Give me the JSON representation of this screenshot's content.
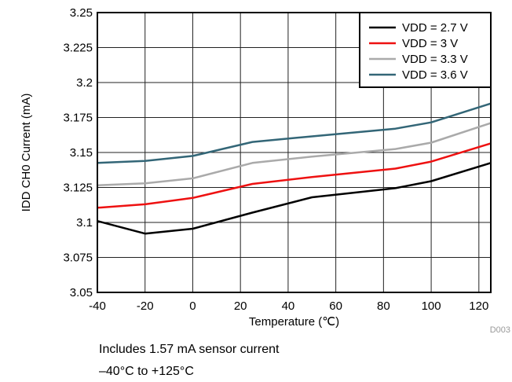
{
  "chart_data": {
    "type": "line",
    "xlabel": "Temperature (℃)",
    "ylabel": "IDD CH0 Current (mA)",
    "xlim": [
      -40,
      125
    ],
    "ylim": [
      3.05,
      3.25
    ],
    "x_ticks": [
      -40,
      -20,
      0,
      20,
      40,
      60,
      80,
      100,
      120
    ],
    "x_tick_labels": [
      "-40",
      "-20",
      "0",
      "20",
      "40",
      "60",
      "80",
      "100",
      "120"
    ],
    "y_ticks": [
      3.05,
      3.075,
      3.1,
      3.125,
      3.15,
      3.175,
      3.2,
      3.225,
      3.25
    ],
    "y_tick_labels": [
      "3.05",
      "3.075",
      "3.1",
      "3.125",
      "3.15",
      "3.175",
      "3.2",
      "3.225",
      "3.25"
    ],
    "grid": true,
    "legend_position": "top-right",
    "x": [
      -40,
      -20,
      0,
      25,
      50,
      85,
      100,
      125
    ],
    "series": [
      {
        "name": "VDD = 2.7 V",
        "color": "#000000",
        "values": [
          3.101,
          3.092,
          3.0955,
          3.107,
          3.118,
          3.1245,
          3.1295,
          3.1425
        ]
      },
      {
        "name": "VDD = 3 V",
        "color": "#ee1111",
        "values": [
          3.1105,
          3.113,
          3.1175,
          3.1275,
          3.1325,
          3.1385,
          3.1435,
          3.1565
        ]
      },
      {
        "name": "VDD = 3.3 V",
        "color": "#aaaaaa",
        "values": [
          3.1265,
          3.128,
          3.1315,
          3.1425,
          3.147,
          3.1525,
          3.157,
          3.171
        ]
      },
      {
        "name": "VDD = 3.6 V",
        "color": "#336677",
        "values": [
          3.1425,
          3.144,
          3.1475,
          3.1575,
          3.1615,
          3.167,
          3.1715,
          3.185
        ]
      }
    ],
    "watermark": "D003"
  },
  "captions": {
    "line1": "Includes 1.57 mA sensor current",
    "line2": "–40°C to +125°C"
  }
}
